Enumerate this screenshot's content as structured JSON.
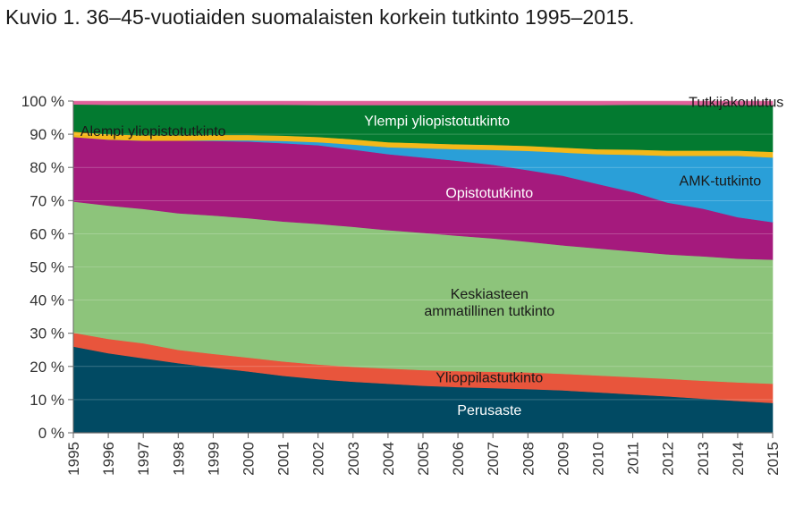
{
  "title": "Kuvio 1. 36–45-vuotiaiden suomalaisten korkein tutkinto 1995–2015.",
  "chart_data": {
    "type": "area",
    "stacked": true,
    "x": [
      1995,
      1996,
      1997,
      1998,
      1999,
      2000,
      2001,
      2002,
      2003,
      2004,
      2005,
      2006,
      2007,
      2008,
      2009,
      2010,
      2011,
      2012,
      2013,
      2014,
      2015
    ],
    "ylim": [
      0,
      100
    ],
    "yticks": [
      0,
      10,
      20,
      30,
      40,
      50,
      60,
      70,
      80,
      90,
      100
    ],
    "ytick_labels": [
      "0 %",
      "10 %",
      "20 %",
      "30 %",
      "40 %",
      "50 %",
      "60 %",
      "70 %",
      "80 %",
      "90 %",
      "100 %"
    ],
    "grid": true,
    "series": [
      {
        "name": "Perusaste",
        "color": "#014a63",
        "label_color": "#ffffff",
        "label_lines": [
          "Perusaste"
        ],
        "values": [
          26.0,
          24.0,
          22.5,
          21.0,
          19.7,
          18.5,
          17.2,
          16.2,
          15.4,
          14.8,
          14.2,
          13.8,
          13.5,
          13.2,
          12.8,
          12.2,
          11.6,
          11.0,
          10.3,
          9.6,
          9.0
        ]
      },
      {
        "name": "Ylioppilastutkinto",
        "color": "#e8553c",
        "label_color": "#1a1a1a",
        "label_lines": [
          "Ylioppilastutkinto"
        ],
        "values": [
          4.2,
          4.3,
          4.5,
          4.0,
          4.1,
          4.2,
          4.3,
          4.4,
          4.5,
          4.6,
          4.7,
          4.8,
          4.9,
          5.0,
          5.0,
          5.1,
          5.2,
          5.3,
          5.4,
          5.6,
          5.8
        ]
      },
      {
        "name": "Keskiasteen ammatillinen tutkinto",
        "color": "#8dc47b",
        "label_color": "#1a1a1a",
        "label_lines": [
          "Keskiasteen",
          "ammatillinen tutkinto"
        ],
        "values": [
          39.5,
          40.2,
          40.5,
          41.2,
          41.7,
          42.0,
          42.2,
          42.4,
          42.2,
          41.7,
          41.4,
          40.8,
          40.2,
          39.4,
          38.7,
          38.3,
          37.9,
          37.5,
          37.5,
          37.3,
          37.4
        ]
      },
      {
        "name": "Opistotutkinto",
        "color": "#a51a7d",
        "label_color": "#ffffff",
        "label_lines": [
          "Opistotutkinto"
        ],
        "values": [
          19.5,
          19.9,
          20.6,
          21.9,
          22.5,
          23.1,
          23.6,
          23.7,
          23.3,
          22.9,
          22.7,
          22.6,
          22.2,
          21.6,
          21.0,
          19.4,
          17.9,
          15.6,
          14.4,
          12.5,
          11.3
        ]
      },
      {
        "name": "AMK-tutkinto",
        "color": "#2a9fd8",
        "label_color": "#1a1a1a",
        "label_lines": [
          "AMK-tutkinto"
        ],
        "values": [
          0.0,
          0.0,
          0.0,
          0.0,
          0.2,
          0.4,
          0.7,
          0.9,
          1.5,
          2.1,
          2.8,
          3.5,
          4.5,
          5.8,
          7.0,
          9.0,
          11.2,
          14.1,
          15.9,
          18.5,
          19.5
        ]
      },
      {
        "name": "Alempi yliopistotutkinto",
        "color": "#f4b819",
        "label_color": "#1a1a1a",
        "label_lines": [
          "Alempi yliopistotutkinto"
        ],
        "values": [
          1.6,
          1.6,
          1.6,
          1.6,
          1.6,
          1.6,
          1.6,
          1.6,
          1.6,
          1.5,
          1.5,
          1.5,
          1.5,
          1.5,
          1.5,
          1.5,
          1.6,
          1.6,
          1.6,
          1.6,
          1.7
        ]
      },
      {
        "name": "Ylempi yliopistotutkinto",
        "color": "#037a30",
        "label_color": "#ffffff",
        "label_lines": [
          "Ylempi yliopistotutkinto"
        ],
        "values": [
          8.2,
          8.9,
          9.2,
          9.2,
          9.1,
          9.1,
          9.3,
          9.6,
          10.3,
          11.2,
          11.5,
          11.8,
          12.0,
          12.3,
          12.8,
          13.3,
          13.5,
          13.8,
          13.7,
          13.7,
          14.1
        ]
      },
      {
        "name": "Tutkijakoulutus",
        "color": "#e0619a",
        "label_color": "#1a1a1a",
        "label_lines": [
          "Tutkijakoulutus"
        ],
        "values": [
          1.0,
          1.1,
          1.1,
          1.1,
          1.1,
          1.1,
          1.1,
          1.2,
          1.2,
          1.2,
          1.2,
          1.2,
          1.2,
          1.2,
          1.2,
          1.2,
          1.1,
          1.1,
          1.2,
          1.2,
          1.2
        ]
      }
    ]
  }
}
